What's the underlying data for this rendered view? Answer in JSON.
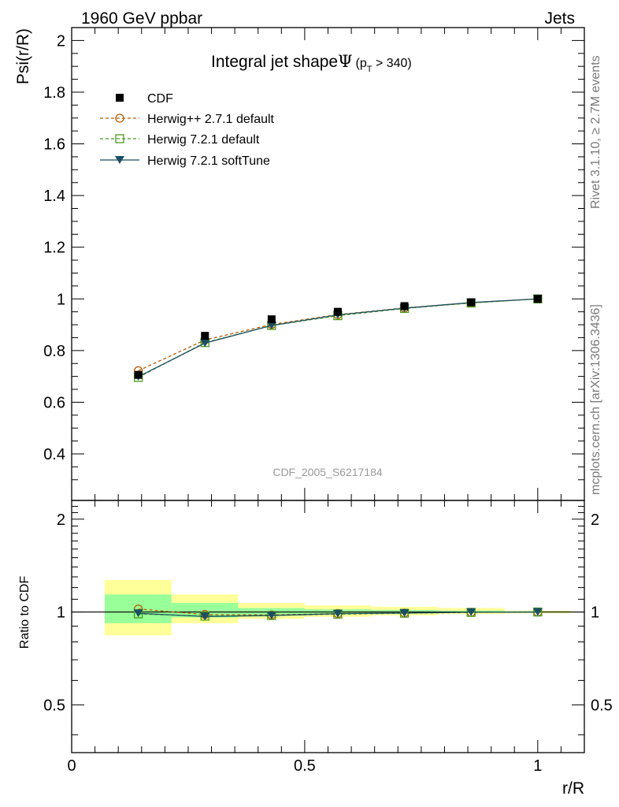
{
  "header": {
    "left": "1960 GeV ppbar",
    "right": "Jets"
  },
  "side_labels": {
    "rivet": "Rivet 3.1.10, ≥ 2.7M events",
    "mcplots": "mcplots.cern.ch [arXiv:1306.3436]"
  },
  "watermark": "CDF_2005_S6217184",
  "chart_data": {
    "type": "line",
    "title_main": "Integral jet shape",
    "title_symbol": "Ψ",
    "title_paren_open": "(p",
    "title_sub": "T",
    "title_paren_close": " > 340)",
    "ylabel": "Psi(r/R)",
    "ratio_ylabel": "Ratio to CDF",
    "xlabel": "r/R",
    "xlim": [
      0,
      1.1
    ],
    "ylim": [
      0.22,
      2.05
    ],
    "ratio_ylim": [
      0.35,
      2.3
    ],
    "x_ticks": [
      "0",
      "0.5",
      "1"
    ],
    "y_ticks": [
      "0.4",
      "0.6",
      "0.8",
      "1",
      "1.2",
      "1.4",
      "1.6",
      "1.8",
      "2"
    ],
    "ratio_ticks": [
      "0.5",
      "1",
      "2"
    ],
    "x": [
      0.143,
      0.286,
      0.429,
      0.571,
      0.714,
      0.857,
      1.0
    ],
    "series": [
      {
        "name": "CDF",
        "values": [
          0.706,
          0.857,
          0.921,
          0.95,
          0.972,
          0.987,
          1.0
        ],
        "color": "#000000",
        "marker": "square-filled"
      },
      {
        "name": "Herwig++ 2.7.1 default",
        "values": [
          0.722,
          0.841,
          0.901,
          0.939,
          0.965,
          0.985,
          1.0
        ],
        "color": "#b35c00",
        "marker": "circle-open",
        "dash": "dashed"
      },
      {
        "name": "Herwig 7.2.1 default",
        "values": [
          0.696,
          0.831,
          0.897,
          0.935,
          0.963,
          0.984,
          1.0
        ],
        "color": "#4a9a1a",
        "marker": "square-open",
        "dash": "dashed"
      },
      {
        "name": "Herwig 7.2.1 softTune",
        "values": [
          0.699,
          0.829,
          0.897,
          0.938,
          0.964,
          0.986,
          1.0
        ],
        "color": "#1a4f63",
        "marker": "triangle-down-filled"
      }
    ],
    "uncertainty_bands": {
      "bin_edges": [
        0.071,
        0.214,
        0.357,
        0.5,
        0.643,
        0.786,
        0.929,
        1.07
      ],
      "yellow_lo": [
        0.84,
        0.92,
        0.95,
        0.965,
        0.975,
        0.985,
        0.99
      ],
      "yellow_hi": [
        1.27,
        1.14,
        1.07,
        1.05,
        1.04,
        1.03,
        1.01
      ],
      "green_lo": [
        0.92,
        0.96,
        0.975,
        0.985,
        0.99,
        0.995,
        0.997
      ],
      "green_hi": [
        1.14,
        1.07,
        1.03,
        1.02,
        1.015,
        1.01,
        1.005
      ]
    },
    "colors": {
      "band_yellow": "#ffff99",
      "band_green": "#99ff99"
    }
  }
}
